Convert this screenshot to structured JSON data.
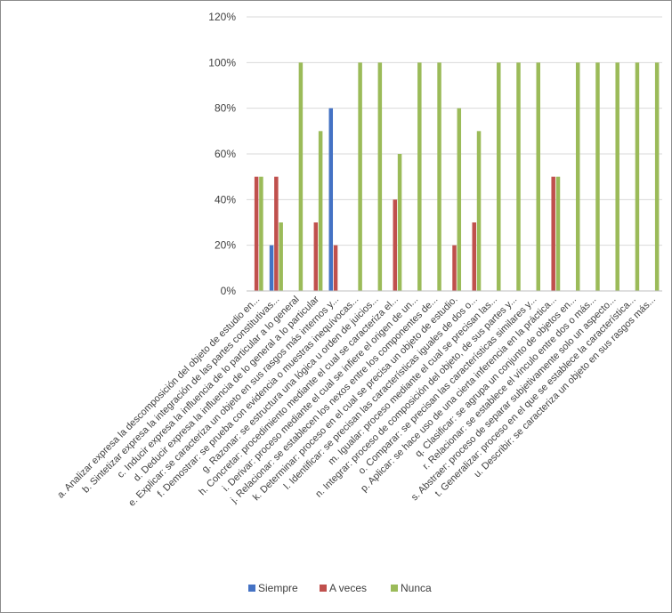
{
  "chart_data": {
    "type": "bar",
    "title": "",
    "xlabel": "",
    "ylabel": "",
    "ylim": [
      0,
      120
    ],
    "yticks": [
      "0%",
      "20%",
      "40%",
      "60%",
      "80%",
      "100%",
      "120%"
    ],
    "grid": true,
    "legend_position": "bottom",
    "categories": [
      "a.    Analizar expresa la descomposición del objeto de estudio en...",
      "b.    Sintetizar expresa la integración de las partes constitutivas...",
      "c.    Inducir expresa la influencia de lo particular a lo general",
      "d.    Deducir expresa la influencia de lo general a lo particular",
      "e.    Explicar: se caracteriza un objeto en sus rasgos más internos y...",
      "f.    Demostrar: se prueba con evidencia o muestras inequívocas...",
      "g.    Razonar: se estructura una lógica u orden de juicios...",
      "h.    Concretar: procedimiento mediante el cual se caracteriza el...",
      "i.    Derivar: proceso mediante el cual se infiere el origen de un...",
      "j.    Relacionar: se establecen los nexos entre los componentes de...",
      "k.    Determinar: proceso en el cual se precisa un objeto de estudio.",
      "l.    Identificar: se precisan las características iguales de dos o...",
      "m.    Igualar: proceso mediante el cual se precisan las...",
      "n.    Integrar: proceso de composición del objeto, de sus partes y...",
      "o.    Comparar: se precisan las características similares y...",
      "p.    Aplicar: se hace uso de una cierta inferencia en la práctica...",
      "q.    Clasificar: se agrupa un conjunto de objetos en...",
      "r.    Relacionar: se establece el vínculo entre dos o más...",
      "s.    Abstraer: proceso de separar subjetivamente solo un aspecto...",
      "t.    Generalizar: proceso en el que se establece la característica...",
      "u.    Describir: se caracteriza un objeto en sus rasgos más..."
    ],
    "series": [
      {
        "name": "Siempre",
        "color": "#4472c4",
        "values": [
          0,
          20,
          0,
          0,
          80,
          0,
          0,
          0,
          0,
          0,
          0,
          0,
          0,
          0,
          0,
          0,
          0,
          0,
          0,
          0,
          0
        ]
      },
      {
        "name": "A veces",
        "color": "#c0504d",
        "values": [
          50,
          50,
          0,
          30,
          20,
          0,
          0,
          40,
          0,
          0,
          20,
          30,
          0,
          0,
          0,
          50,
          0,
          0,
          0,
          0,
          0
        ]
      },
      {
        "name": "Nunca",
        "color": "#9bbb59",
        "values": [
          50,
          30,
          100,
          70,
          0,
          100,
          100,
          60,
          100,
          100,
          80,
          70,
          100,
          100,
          100,
          50,
          100,
          100,
          100,
          100,
          100
        ]
      }
    ]
  }
}
